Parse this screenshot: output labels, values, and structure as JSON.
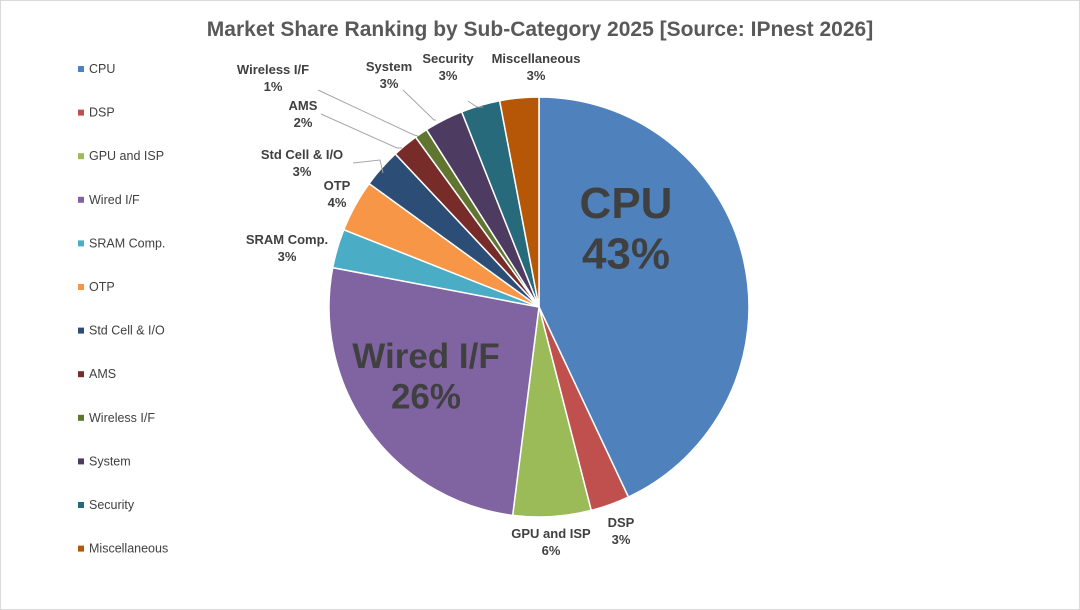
{
  "chart_data": {
    "type": "pie",
    "title": "Market Share Ranking by Sub-Category 2025 [Source: IPnest 2026]",
    "start_angle_deg": 0,
    "direction": "clockwise",
    "legend_position": "left",
    "slices": [
      {
        "name": "CPU",
        "value": 43,
        "label": "43%",
        "color": "#4F81BD"
      },
      {
        "name": "DSP",
        "value": 3,
        "label": "3%",
        "color": "#C0504D"
      },
      {
        "name": "GPU and ISP",
        "value": 6,
        "label": "6%",
        "color": "#9BBB59"
      },
      {
        "name": "Wired I/F",
        "value": 26,
        "label": "26%",
        "color": "#8064A2"
      },
      {
        "name": "SRAM Comp.",
        "value": 3,
        "label": "3%",
        "color": "#4BACC6"
      },
      {
        "name": "OTP",
        "value": 4,
        "label": "4%",
        "color": "#F79646"
      },
      {
        "name": "Std Cell & I/O",
        "value": 3,
        "label": "3%",
        "color": "#2C4D75"
      },
      {
        "name": "AMS",
        "value": 2,
        "label": "2%",
        "color": "#772C2A"
      },
      {
        "name": "Wireless I/F",
        "value": 1,
        "label": "1%",
        "color": "#5F7530"
      },
      {
        "name": "System",
        "value": 3,
        "label": "3%",
        "color": "#4D3B62"
      },
      {
        "name": "Security",
        "value": 3,
        "label": "3%",
        "color": "#276A7C"
      },
      {
        "name": "Miscellaneous",
        "value": 3,
        "label": "3%",
        "color": "#B65708"
      }
    ]
  }
}
